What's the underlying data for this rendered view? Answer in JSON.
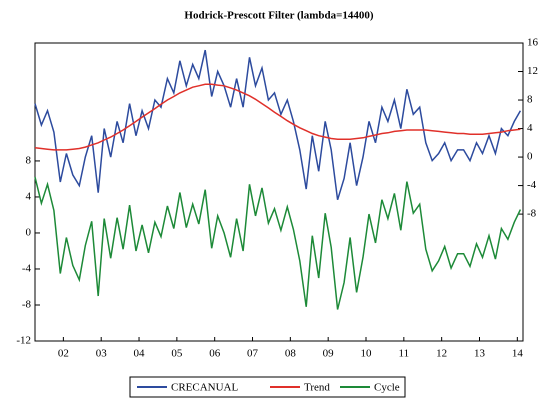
{
  "chart_data": {
    "type": "line",
    "title": "Hodrick-Prescott Filter (lambda=14400)",
    "x": [
      2001.75,
      2001.92,
      2002.08,
      2002.25,
      2002.42,
      2002.58,
      2002.75,
      2002.92,
      2003.08,
      2003.25,
      2003.42,
      2003.58,
      2003.75,
      2003.92,
      2004.08,
      2004.25,
      2004.42,
      2004.58,
      2004.75,
      2004.92,
      2005.08,
      2005.25,
      2005.42,
      2005.58,
      2005.75,
      2005.92,
      2006.08,
      2006.25,
      2006.42,
      2006.58,
      2006.75,
      2006.92,
      2007.08,
      2007.25,
      2007.42,
      2007.58,
      2007.75,
      2007.92,
      2008.08,
      2008.25,
      2008.42,
      2008.58,
      2008.75,
      2008.92,
      2009.08,
      2009.25,
      2009.42,
      2009.58,
      2009.75,
      2009.92,
      2010.08,
      2010.25,
      2010.42,
      2010.58,
      2010.75,
      2010.92,
      2011.08,
      2011.25,
      2011.42,
      2011.58,
      2011.75,
      2011.92,
      2012.08,
      2012.25,
      2012.42,
      2012.58,
      2012.75,
      2012.92,
      2013.08,
      2013.25,
      2013.42,
      2013.58,
      2013.75,
      2013.92,
      2014.08,
      2014.25,
      2014.42,
      2014.58
    ],
    "xlim": [
      2001.75,
      2014.65
    ],
    "xticks": [
      {
        "value": 2002.5,
        "label": "02"
      },
      {
        "value": 2003.5,
        "label": "03"
      },
      {
        "value": 2004.5,
        "label": "04"
      },
      {
        "value": 2005.5,
        "label": "05"
      },
      {
        "value": 2006.5,
        "label": "06"
      },
      {
        "value": 2007.5,
        "label": "07"
      },
      {
        "value": 2008.5,
        "label": "08"
      },
      {
        "value": 2009.5,
        "label": "09"
      },
      {
        "value": 2010.5,
        "label": "10"
      },
      {
        "value": 2011.5,
        "label": "11"
      },
      {
        "value": 2012.5,
        "label": "12"
      },
      {
        "value": 2013.5,
        "label": "13"
      },
      {
        "value": 2014.5,
        "label": "14"
      }
    ],
    "ylim": [
      -12,
      21.1
    ],
    "yticks": [
      -12,
      -8,
      -4,
      0,
      4,
      8
    ],
    "y2lim": [
      -25.8,
      16
    ],
    "y2ticks": [
      -8,
      -4,
      0,
      4,
      8,
      12,
      16
    ],
    "series": [
      {
        "name": "CRECANUAL",
        "color": "#2d4b9e",
        "axis": "y2",
        "values": [
          7.5,
          4.5,
          6.5,
          3.5,
          -3.5,
          0.5,
          -2.5,
          -4,
          0,
          3,
          -5,
          4,
          0,
          5,
          2,
          7.5,
          3,
          6.5,
          4,
          8,
          7,
          11,
          9,
          13.5,
          10,
          13,
          11,
          15,
          8.5,
          12,
          10,
          7,
          11,
          7,
          14,
          10,
          12.5,
          8,
          9,
          6,
          8,
          5,
          1,
          -4.5,
          3,
          -2,
          5,
          1,
          -6,
          -3,
          2,
          -4,
          0,
          5,
          2,
          7,
          5,
          8,
          4,
          9.5,
          6,
          7,
          2,
          -0.5,
          0.5,
          2,
          -0.5,
          1,
          1,
          -0.5,
          2,
          0.5,
          3,
          0.5,
          4,
          3,
          5,
          6.5
        ]
      },
      {
        "name": "Trend",
        "color": "#e0302a",
        "axis": "y2",
        "values": [
          1.3,
          1.2,
          1.1,
          1.0,
          1.0,
          1.0,
          1.1,
          1.2,
          1.4,
          1.7,
          2.0,
          2.4,
          2.8,
          3.3,
          3.8,
          4.4,
          5.0,
          5.6,
          6.2,
          6.8,
          7.4,
          8.0,
          8.5,
          9.0,
          9.4,
          9.8,
          10.0,
          10.2,
          10.2,
          10.1,
          10.0,
          9.7,
          9.4,
          9.0,
          8.6,
          8.1,
          7.5,
          6.9,
          6.3,
          5.7,
          5.1,
          4.6,
          4.1,
          3.7,
          3.3,
          3.0,
          2.8,
          2.6,
          2.5,
          2.5,
          2.5,
          2.6,
          2.7,
          2.9,
          3.1,
          3.3,
          3.4,
          3.6,
          3.7,
          3.8,
          3.8,
          3.8,
          3.8,
          3.7,
          3.6,
          3.5,
          3.4,
          3.3,
          3.3,
          3.2,
          3.2,
          3.2,
          3.3,
          3.4,
          3.5,
          3.7,
          3.8,
          3.9
        ]
      },
      {
        "name": "Cycle",
        "color": "#1d8a38",
        "axis": "y",
        "values": [
          6.2,
          3.3,
          5.4,
          2.5,
          -4.5,
          -0.5,
          -3.6,
          -5.2,
          -1.4,
          1.3,
          -7,
          1.6,
          -2.8,
          1.7,
          -1.8,
          3.1,
          -2,
          0.9,
          -2.2,
          1.2,
          -0.4,
          3,
          0.5,
          4.5,
          0.6,
          3.2,
          1,
          4.8,
          -1.7,
          1.9,
          0,
          -2.7,
          1.6,
          -2,
          5.4,
          1.9,
          5,
          1.1,
          2.7,
          0.3,
          2.9,
          0.4,
          -3.1,
          -8.2,
          -0.3,
          -5,
          2.2,
          -1.6,
          -8.5,
          -5.5,
          -0.5,
          -6.6,
          -2.7,
          2.1,
          -1.1,
          3.7,
          1.6,
          4.4,
          0.3,
          5.7,
          2.2,
          3.2,
          -1.8,
          -4.2,
          -3.1,
          -1.5,
          -3.9,
          -2.3,
          -2.3,
          -3.7,
          -1.2,
          -2.7,
          -0.3,
          -2.9,
          0.5,
          -0.7,
          1.2,
          2.6
        ]
      }
    ]
  }
}
